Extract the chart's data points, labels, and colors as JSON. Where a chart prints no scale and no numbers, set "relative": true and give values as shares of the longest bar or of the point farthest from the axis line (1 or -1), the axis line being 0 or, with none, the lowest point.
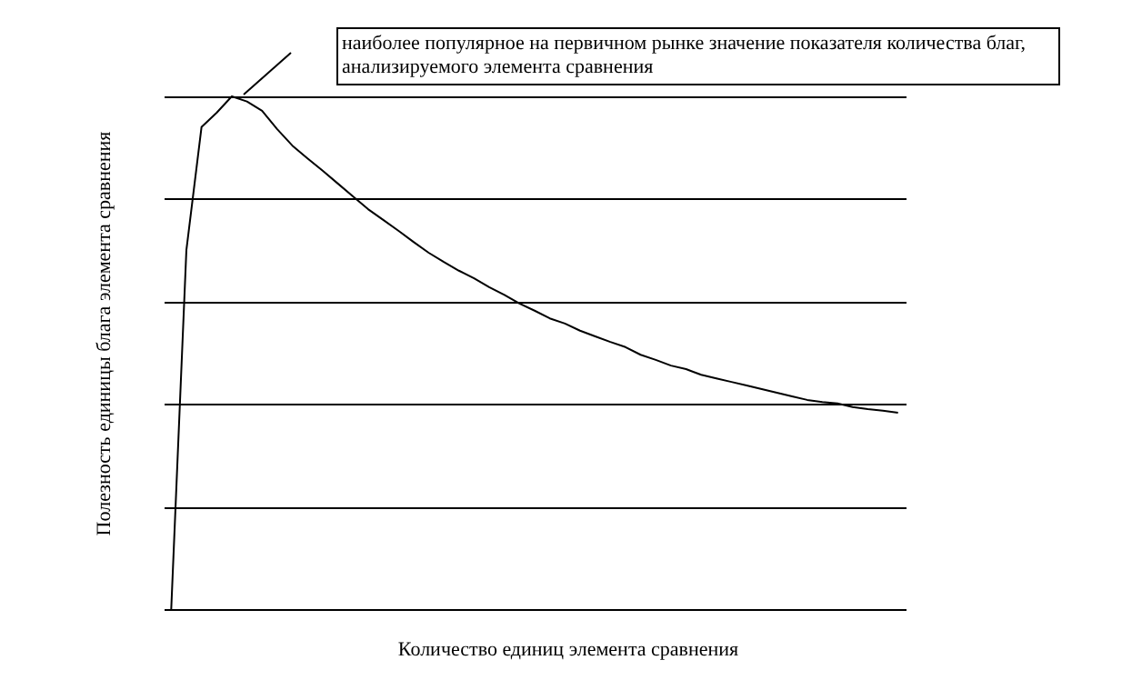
{
  "chart_data": {
    "type": "line",
    "relative": true,
    "xlabel": "Количество единиц элемента сравнения",
    "ylabel": "Полезность единицы блага элемента сравнения",
    "annotations": [
      "наиболее популярное на первичном рынке значение показателя количества благ, анализируемого элемента сравнения"
    ],
    "grid": "y",
    "legend": false,
    "marker": "none",
    "line_style": "solid",
    "categories": [
      null,
      null,
      null,
      null,
      null,
      null,
      null,
      null,
      null,
      null,
      null,
      null,
      null,
      null,
      null,
      null,
      null,
      null,
      null,
      null,
      null,
      null,
      null,
      null,
      null,
      null,
      null,
      null,
      null,
      null,
      null,
      null,
      null,
      null,
      null,
      null,
      null,
      null,
      null,
      null,
      null,
      null,
      null,
      null,
      null,
      null,
      null,
      null,
      null
    ],
    "series": [
      {
        "color": "#000000",
        "values": [
          0,
          0.7,
          0.94,
          0.968,
          1,
          0.99,
          0.972,
          0.936,
          0.904,
          0.879,
          0.855,
          0.83,
          0.805,
          0.78,
          0.759,
          0.738,
          0.716,
          0.695,
          0.677,
          0.66,
          0.645,
          0.628,
          0.613,
          0.596,
          0.582,
          0.567,
          0.557,
          0.543,
          0.532,
          0.521,
          0.511,
          0.496,
          0.486,
          0.475,
          0.468,
          0.457,
          0.45,
          0.443,
          0.436,
          0.429,
          0.422,
          0.415,
          0.408,
          0.404,
          0.401,
          0.394,
          0.39,
          0.387,
          0.383
        ]
      }
    ]
  }
}
